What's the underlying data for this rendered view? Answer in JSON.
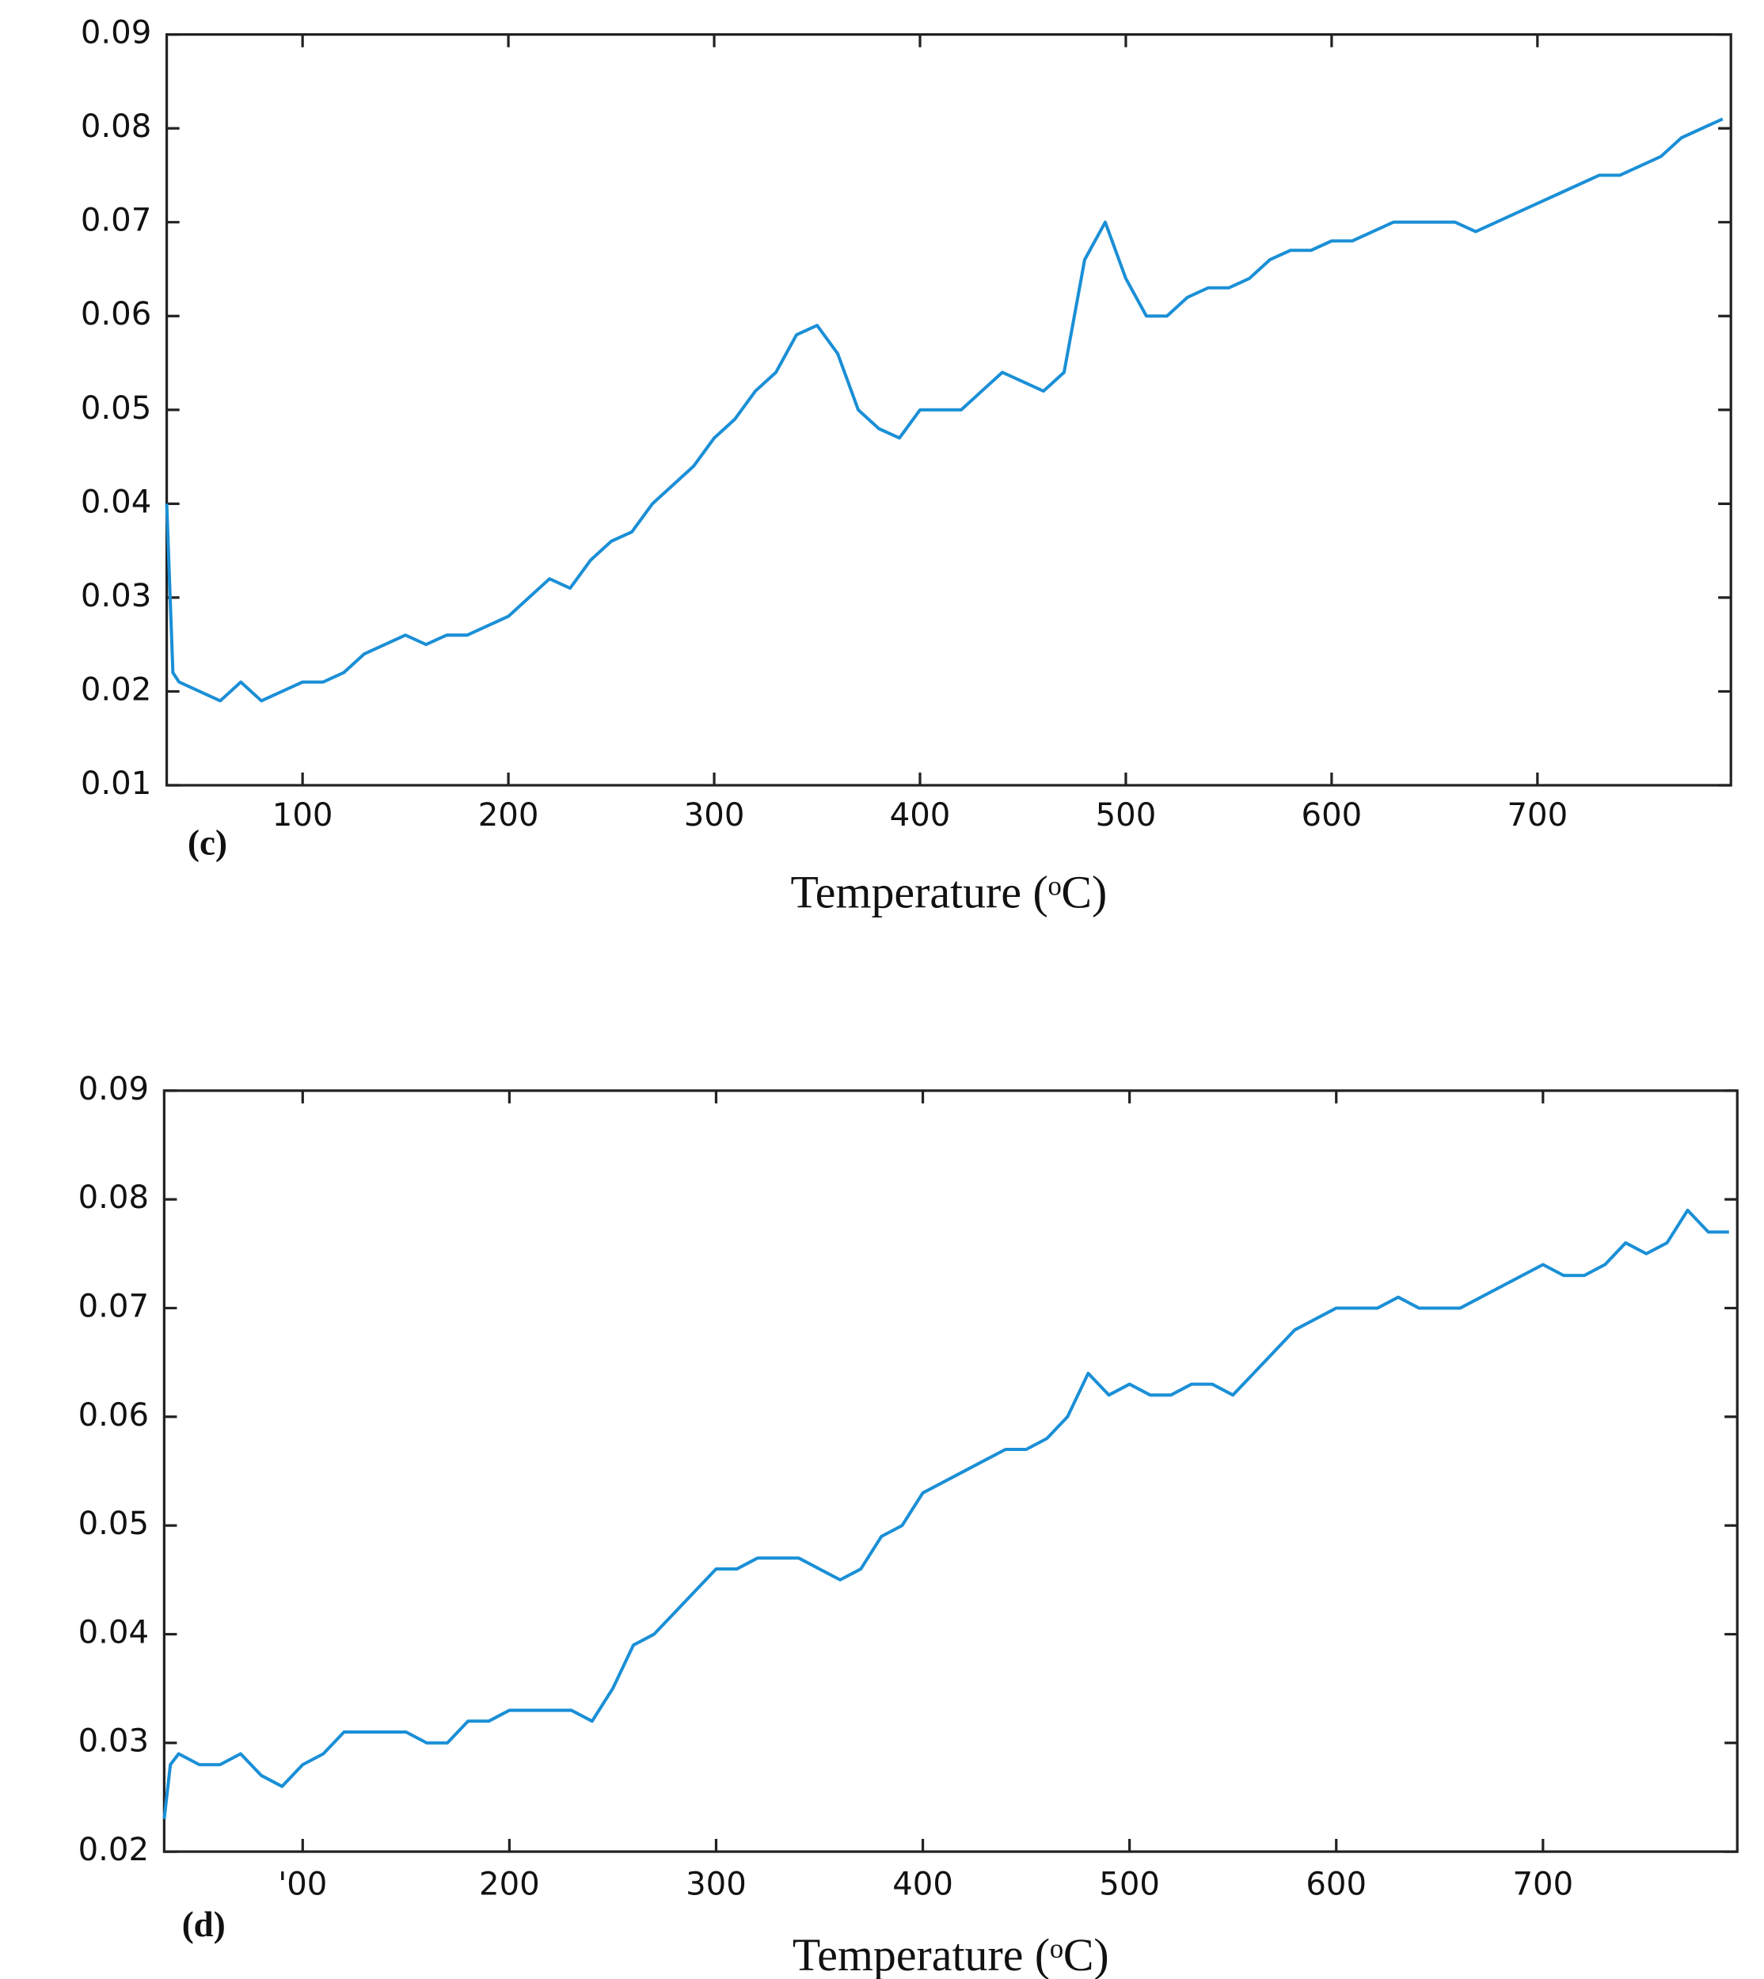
{
  "chart_data": [
    {
      "type": "line",
      "label": "(c)",
      "x_label": "Temperature (ᵒC)",
      "color": "#1a8fd6",
      "xlim": [
        34,
        794
      ],
      "xticks": [
        100,
        200,
        300,
        400,
        500,
        600,
        700
      ],
      "ylim": [
        0.01,
        0.09
      ],
      "yticks": [
        0.01,
        0.02,
        0.03,
        0.04,
        0.05,
        0.06,
        0.07,
        0.08,
        0.09
      ],
      "x": [
        34,
        37,
        40,
        50,
        60,
        70,
        80,
        90,
        100,
        110,
        120,
        130,
        140,
        150,
        160,
        170,
        180,
        190,
        200,
        210,
        220,
        230,
        240,
        250,
        260,
        270,
        280,
        290,
        300,
        310,
        320,
        330,
        340,
        350,
        360,
        370,
        380,
        390,
        400,
        410,
        420,
        430,
        440,
        450,
        460,
        470,
        480,
        490,
        500,
        510,
        520,
        530,
        540,
        550,
        560,
        570,
        580,
        590,
        600,
        610,
        620,
        630,
        640,
        650,
        660,
        670,
        680,
        690,
        700,
        710,
        720,
        730,
        740,
        750,
        760,
        770,
        780,
        790
      ],
      "values": [
        0.04,
        0.022,
        0.021,
        0.02,
        0.019,
        0.021,
        0.019,
        0.02,
        0.021,
        0.021,
        0.022,
        0.024,
        0.025,
        0.026,
        0.025,
        0.026,
        0.026,
        0.027,
        0.028,
        0.03,
        0.032,
        0.031,
        0.034,
        0.036,
        0.037,
        0.04,
        0.042,
        0.044,
        0.047,
        0.049,
        0.052,
        0.054,
        0.058,
        0.059,
        0.056,
        0.05,
        0.048,
        0.047,
        0.05,
        0.05,
        0.05,
        0.052,
        0.054,
        0.053,
        0.052,
        0.054,
        0.066,
        0.07,
        0.064,
        0.06,
        0.06,
        0.062,
        0.063,
        0.063,
        0.064,
        0.066,
        0.067,
        0.067,
        0.068,
        0.068,
        0.069,
        0.07,
        0.07,
        0.07,
        0.07,
        0.069,
        0.07,
        0.071,
        0.072,
        0.073,
        0.074,
        0.075,
        0.075,
        0.076,
        0.077,
        0.079,
        0.08,
        0.081
      ]
    },
    {
      "type": "line",
      "label": "(d)",
      "x_label": "Temperature (ᵒC)",
      "color": "#1a8fd6",
      "xlim": [
        33,
        794
      ],
      "xticks": [
        {
          "value": 100,
          "label": "'00"
        },
        200,
        300,
        400,
        500,
        600,
        700
      ],
      "ylim": [
        0.02,
        0.09
      ],
      "yticks": [
        0.02,
        0.03,
        0.04,
        0.05,
        0.06,
        0.07,
        0.08,
        0.09
      ],
      "x": [
        33,
        36,
        40,
        50,
        60,
        70,
        80,
        90,
        100,
        110,
        120,
        130,
        140,
        150,
        160,
        170,
        180,
        190,
        200,
        210,
        220,
        230,
        240,
        250,
        260,
        270,
        280,
        290,
        300,
        310,
        320,
        330,
        340,
        350,
        360,
        370,
        380,
        390,
        400,
        410,
        420,
        430,
        440,
        450,
        460,
        470,
        480,
        490,
        500,
        510,
        520,
        530,
        540,
        550,
        560,
        570,
        580,
        590,
        600,
        610,
        620,
        630,
        640,
        650,
        660,
        670,
        680,
        690,
        700,
        710,
        720,
        730,
        740,
        750,
        760,
        770,
        780,
        790
      ],
      "values": [
        0.023,
        0.028,
        0.029,
        0.028,
        0.028,
        0.029,
        0.027,
        0.026,
        0.028,
        0.029,
        0.031,
        0.031,
        0.031,
        0.031,
        0.03,
        0.03,
        0.032,
        0.032,
        0.033,
        0.033,
        0.033,
        0.033,
        0.032,
        0.035,
        0.039,
        0.04,
        0.042,
        0.044,
        0.046,
        0.046,
        0.047,
        0.047,
        0.047,
        0.046,
        0.045,
        0.046,
        0.049,
        0.05,
        0.053,
        0.054,
        0.055,
        0.056,
        0.057,
        0.057,
        0.058,
        0.06,
        0.064,
        0.062,
        0.063,
        0.062,
        0.062,
        0.063,
        0.063,
        0.062,
        0.064,
        0.066,
        0.068,
        0.069,
        0.07,
        0.07,
        0.07,
        0.071,
        0.07,
        0.07,
        0.07,
        0.071,
        0.072,
        0.073,
        0.074,
        0.073,
        0.073,
        0.074,
        0.076,
        0.075,
        0.076,
        0.079,
        0.077,
        0.077
      ]
    }
  ]
}
